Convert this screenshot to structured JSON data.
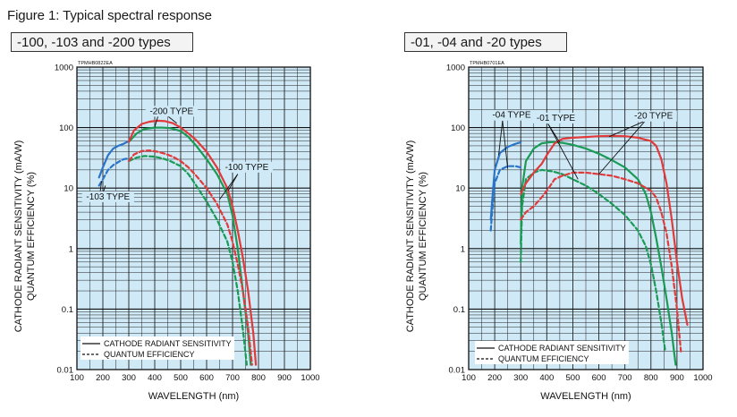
{
  "figure_title": "Figure 1: Typical spectral response",
  "chart_data": [
    {
      "type": "line",
      "panel_title": "-100, -103 and -200 types",
      "code": "TPMHB0822EA",
      "xlabel": "WAVELENGTH (nm)",
      "ylabel_1": "CATHODE RADIANT SENSITIVITY (mA/W)",
      "ylabel_2": "QUANTUM EFFICIENCY (%)",
      "xlim": [
        100,
        1000
      ],
      "ylim": [
        0.01,
        1000
      ],
      "yscale": "log",
      "grid": true,
      "xticks": [
        "100",
        "200",
        "300",
        "400",
        "500",
        "600",
        "700",
        "800",
        "900",
        "1000"
      ],
      "yticks": [
        "0.01",
        "0.1",
        "1",
        "10",
        "100",
        "1000"
      ],
      "legend": {
        "solid": "CATHODE RADIANT SENSITIVITY",
        "dashed": "QUANTUM EFFICIENCY"
      },
      "annotations": {
        "a200": "-200 TYPE",
        "a100": "-100 TYPE",
        "a103": "-103 TYPE"
      },
      "series": [
        {
          "color": "#2b74c7",
          "dash": false,
          "points": [
            [
              185,
              15
            ],
            [
              200,
              22
            ],
            [
              220,
              35
            ],
            [
              240,
              45
            ],
            [
              260,
              50
            ],
            [
              280,
              54
            ],
            [
              300,
              60
            ]
          ]
        },
        {
          "color": "#2b74c7",
          "dash": true,
          "points": [
            [
              185,
              11
            ],
            [
              200,
              14
            ],
            [
              220,
              20
            ],
            [
              240,
              24
            ],
            [
              260,
              27
            ],
            [
              280,
              30
            ],
            [
              300,
              31
            ]
          ]
        },
        {
          "color": "#1a9a55",
          "dash": false,
          "points": [
            [
              300,
              58
            ],
            [
              330,
              80
            ],
            [
              360,
              95
            ],
            [
              400,
              100
            ],
            [
              430,
              100
            ],
            [
              460,
              98
            ],
            [
              500,
              88
            ],
            [
              530,
              70
            ],
            [
              560,
              50
            ],
            [
              600,
              30
            ],
            [
              640,
              17
            ],
            [
              680,
              8
            ],
            [
              700,
              3.5
            ],
            [
              720,
              1
            ],
            [
              740,
              0.2
            ],
            [
              760,
              0.04
            ],
            [
              770,
              0.012
            ]
          ]
        },
        {
          "color": "#1a9a55",
          "dash": true,
          "points": [
            [
              300,
              28
            ],
            [
              330,
              32
            ],
            [
              360,
              34
            ],
            [
              400,
              33
            ],
            [
              430,
              31
            ],
            [
              460,
              28
            ],
            [
              500,
              23
            ],
            [
              530,
              17
            ],
            [
              560,
              11
            ],
            [
              600,
              6
            ],
            [
              640,
              3
            ],
            [
              680,
              1.3
            ],
            [
              700,
              0.6
            ],
            [
              720,
              0.2
            ],
            [
              740,
              0.045
            ],
            [
              755,
              0.012
            ]
          ]
        },
        {
          "color": "#e03a3a",
          "dash": false,
          "points": [
            [
              300,
              58
            ],
            [
              320,
              90
            ],
            [
              350,
              115
            ],
            [
              380,
              125
            ],
            [
              410,
              130
            ],
            [
              440,
              128
            ],
            [
              470,
              118
            ],
            [
              500,
              100
            ],
            [
              530,
              80
            ],
            [
              560,
              62
            ],
            [
              600,
              40
            ],
            [
              640,
              22
            ],
            [
              680,
              10
            ],
            [
              700,
              5
            ],
            [
              720,
              2
            ],
            [
              740,
              0.7
            ],
            [
              760,
              0.2
            ],
            [
              780,
              0.04
            ],
            [
              790,
              0.012
            ]
          ]
        },
        {
          "color": "#e03a3a",
          "dash": true,
          "points": [
            [
              300,
              28
            ],
            [
              320,
              36
            ],
            [
              350,
              41
            ],
            [
              380,
              42
            ],
            [
              410,
              40
            ],
            [
              440,
              37
            ],
            [
              470,
              33
            ],
            [
              500,
              28
            ],
            [
              530,
              22
            ],
            [
              560,
              16
            ],
            [
              600,
              10
            ],
            [
              640,
              5.5
            ],
            [
              680,
              2.5
            ],
            [
              700,
              1.3
            ],
            [
              720,
              0.55
            ],
            [
              740,
              0.2
            ],
            [
              760,
              0.05
            ],
            [
              775,
              0.012
            ]
          ]
        }
      ]
    },
    {
      "type": "line",
      "panel_title": "-01, -04 and -20 types",
      "code": "TPMHB0701EA",
      "xlabel": "WAVELENGTH (nm)",
      "ylabel_1": "CATHODE RADIANT SENSITIVITY (mA/W)",
      "ylabel_2": "QUANTUM EFFICIENCY (%)",
      "xlim": [
        100,
        1000
      ],
      "ylim": [
        0.01,
        1000
      ],
      "yscale": "log",
      "grid": true,
      "xticks": [
        "100",
        "200",
        "300",
        "400",
        "500",
        "600",
        "700",
        "800",
        "900",
        "1000"
      ],
      "yticks": [
        "0.01",
        "0.1",
        "1",
        "10",
        "100",
        "1000"
      ],
      "legend": {
        "solid": "CATHODE RADIANT SENSITIVITY",
        "dashed": "QUANTUM EFFICIENCY"
      },
      "annotations": {
        "a04": "-04 TYPE",
        "a01": "-01 TYPE",
        "a20": "-20 TYPE"
      },
      "series": [
        {
          "color": "#2b74c7",
          "dash": false,
          "points": [
            [
              185,
              3
            ],
            [
              190,
              6
            ],
            [
              200,
              20
            ],
            [
              220,
              38
            ],
            [
              250,
              48
            ],
            [
              280,
              54
            ],
            [
              300,
              57
            ]
          ]
        },
        {
          "color": "#2b74c7",
          "dash": true,
          "points": [
            [
              185,
              2
            ],
            [
              190,
              4
            ],
            [
              200,
              12
            ],
            [
              220,
              20
            ],
            [
              250,
              23
            ],
            [
              280,
              23
            ],
            [
              300,
              22
            ]
          ]
        },
        {
          "color": "#1a9a55",
          "dash": false,
          "points": [
            [
              300,
              1.2
            ],
            [
              305,
              10
            ],
            [
              320,
              28
            ],
            [
              350,
              45
            ],
            [
              380,
              55
            ],
            [
              420,
              58
            ],
            [
              460,
              56
            ],
            [
              500,
              52
            ],
            [
              550,
              45
            ],
            [
              600,
              37
            ],
            [
              650,
              29
            ],
            [
              700,
              22
            ],
            [
              750,
              14
            ],
            [
              780,
              8
            ],
            [
              800,
              4
            ],
            [
              820,
              1.5
            ],
            [
              840,
              0.5
            ],
            [
              860,
              0.15
            ],
            [
              880,
              0.04
            ],
            [
              895,
              0.012
            ]
          ]
        },
        {
          "color": "#1a9a55",
          "dash": true,
          "points": [
            [
              300,
              0.6
            ],
            [
              305,
              5
            ],
            [
              320,
              14
            ],
            [
              350,
              18
            ],
            [
              380,
              20
            ],
            [
              420,
              19
            ],
            [
              460,
              17
            ],
            [
              500,
              14
            ],
            [
              550,
              11
            ],
            [
              600,
              8
            ],
            [
              650,
              5.5
            ],
            [
              700,
              3.6
            ],
            [
              750,
              2
            ],
            [
              780,
              1.1
            ],
            [
              800,
              0.55
            ],
            [
              820,
              0.2
            ],
            [
              840,
              0.06
            ],
            [
              855,
              0.02
            ]
          ]
        },
        {
          "color": "#e03a3a",
          "dash": false,
          "points": [
            [
              300,
              8
            ],
            [
              320,
              12
            ],
            [
              350,
              18
            ],
            [
              380,
              25
            ],
            [
              400,
              35
            ],
            [
              430,
              55
            ],
            [
              460,
              65
            ],
            [
              500,
              68
            ],
            [
              550,
              70
            ],
            [
              600,
              72
            ],
            [
              650,
              73
            ],
            [
              700,
              72
            ],
            [
              750,
              68
            ],
            [
              800,
              60
            ],
            [
              820,
              50
            ],
            [
              840,
              30
            ],
            [
              860,
              12
            ],
            [
              880,
              3
            ],
            [
              900,
              0.6
            ],
            [
              920,
              0.15
            ],
            [
              940,
              0.055
            ]
          ]
        },
        {
          "color": "#e03a3a",
          "dash": true,
          "points": [
            [
              300,
              3
            ],
            [
              320,
              4
            ],
            [
              350,
              5
            ],
            [
              380,
              7
            ],
            [
              400,
              9
            ],
            [
              430,
              14
            ],
            [
              460,
              16
            ],
            [
              500,
              18
            ],
            [
              550,
              18
            ],
            [
              600,
              17
            ],
            [
              650,
              16
            ],
            [
              700,
              14
            ],
            [
              750,
              12
            ],
            [
              800,
              9
            ],
            [
              820,
              7
            ],
            [
              840,
              4
            ],
            [
              860,
              1.8
            ],
            [
              880,
              0.5
            ],
            [
              900,
              0.1
            ],
            [
              915,
              0.02
            ]
          ]
        }
      ]
    }
  ]
}
